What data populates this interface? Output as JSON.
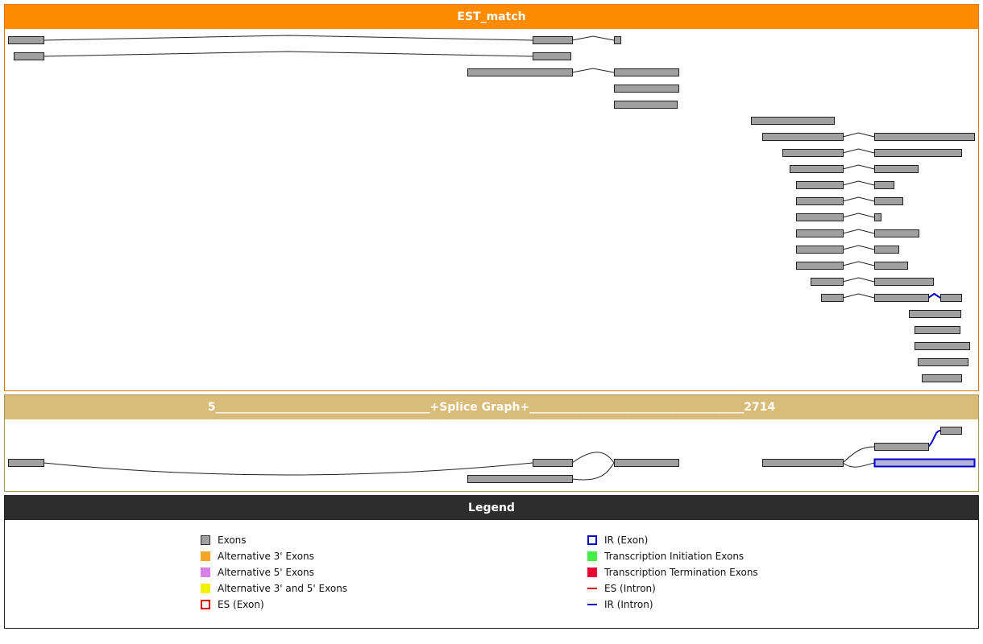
{
  "est_panel": {
    "title": "EST_match"
  },
  "splice_panel": {
    "title": "5______________________________________+Splice Graph+______________________________________2714"
  },
  "legend": {
    "title": "Legend",
    "items": [
      {
        "label": "Exons",
        "color": "#a0a0a0",
        "icon": "grey-square"
      },
      {
        "label": "Alternative 3' Exons",
        "color": "#f5a623",
        "icon": "orange-square"
      },
      {
        "label": "Alternative 5' Exons",
        "color": "#d97ee8",
        "icon": "violet-square"
      },
      {
        "label": "Alternative 3' and 5' Exons",
        "color": "#f2f200",
        "icon": "yellow-square"
      },
      {
        "label": "ES (Exon)",
        "color": "#e00000",
        "icon": "red-dashed-square"
      },
      {
        "label": "IR (Exon)",
        "color": "#0000cc",
        "icon": "blue-outline-square"
      },
      {
        "label": "Transcription Initiation Exons",
        "color": "#44ee44",
        "icon": "green-square"
      },
      {
        "label": "Transcription Termination Exons",
        "color": "#ee0033",
        "icon": "red-square"
      },
      {
        "label": "ES (Intron)",
        "color": "#e00000",
        "icon": "red-dashed-line"
      },
      {
        "label": "IR (Intron)",
        "color": "#0000cc",
        "icon": "blue-line"
      }
    ]
  },
  "colors": {
    "exon_fill": "#a0a0a0",
    "exon_stroke": "#222222",
    "intron": "#222222",
    "ir_highlight": "#0000cc",
    "ir_fill": "#b4b4d8"
  }
}
